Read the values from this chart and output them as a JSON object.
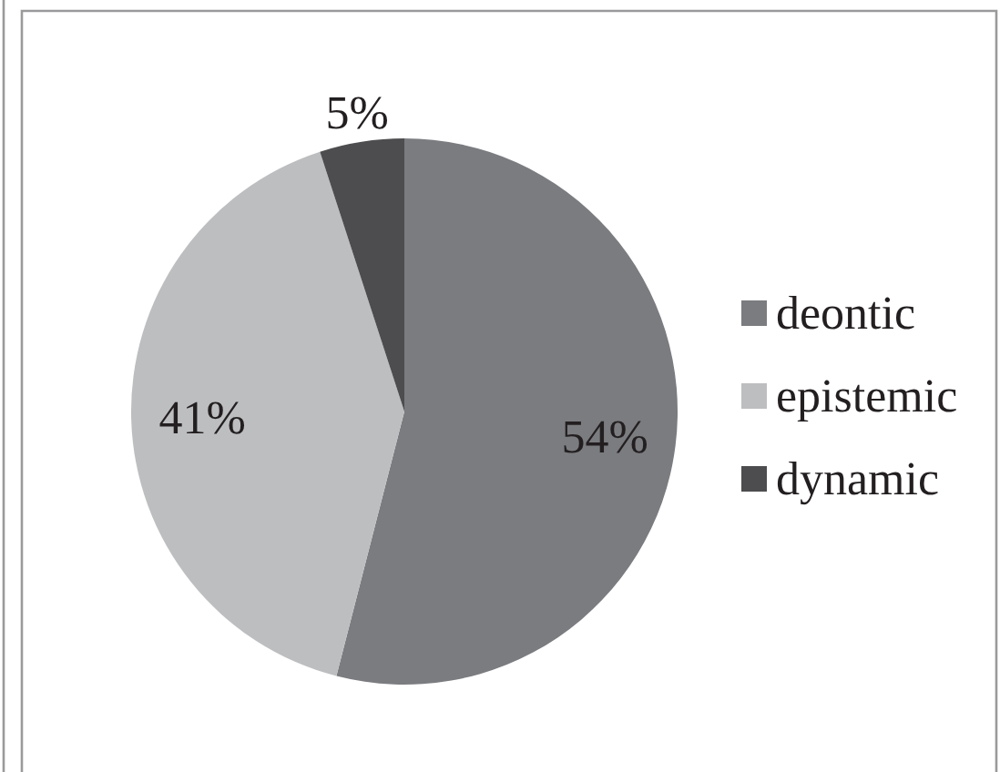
{
  "chart_data": {
    "type": "pie",
    "categories": [
      "deontic",
      "epistemic",
      "dynamic"
    ],
    "values": [
      54,
      41,
      5
    ],
    "colors": [
      "#7b7c80",
      "#bdbec0",
      "#4d4d4f"
    ],
    "value_labels": [
      "54%",
      "41%",
      "5%"
    ],
    "legend": "right"
  }
}
